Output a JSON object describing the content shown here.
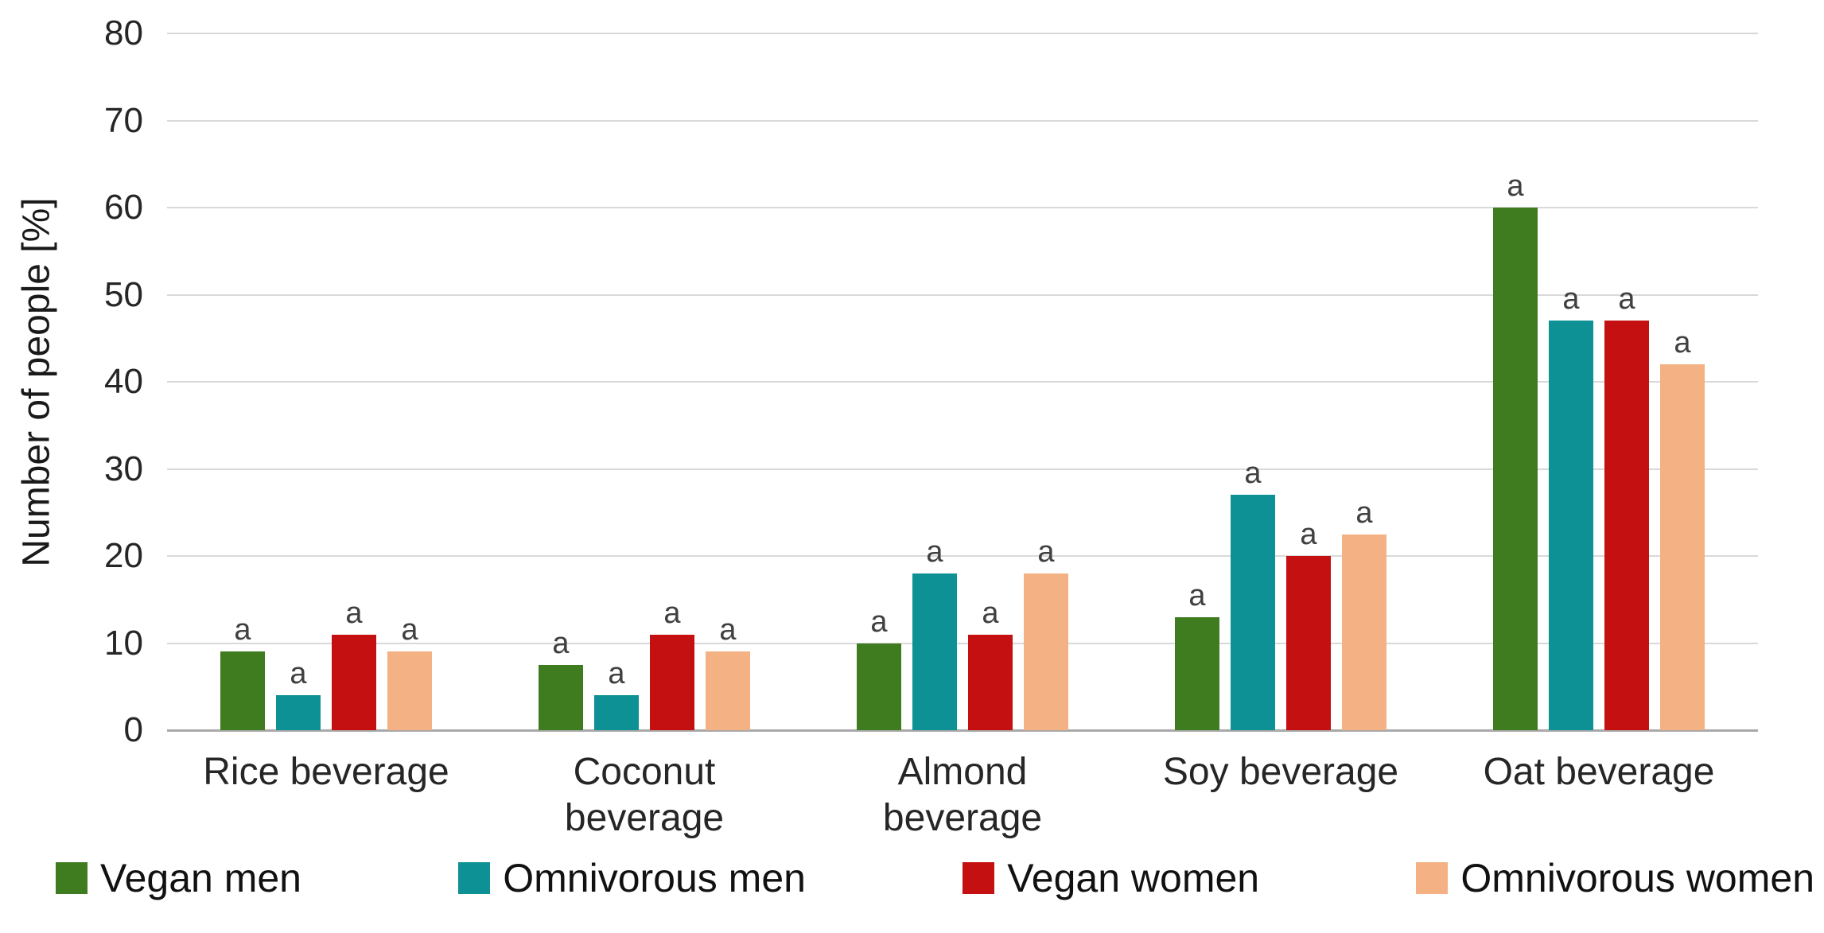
{
  "chart_data": {
    "type": "bar",
    "title": "",
    "ylabel": "Number of people [%]",
    "xlabel": "",
    "ylim": [
      0,
      80
    ],
    "ytick_step": 10,
    "grid": true,
    "legend_position": "bottom",
    "bar_annotation": "a",
    "categories": [
      "Rice beverage",
      "Coconut\nbeverage",
      "Almond\nbeverage",
      "Soy beverage",
      "Oat beverage"
    ],
    "series": [
      {
        "name": "Vegan men",
        "color": "#3E7C1F",
        "values": [
          9,
          7.5,
          10,
          13,
          60
        ]
      },
      {
        "name": "Omnivorous men",
        "color": "#0E9195",
        "values": [
          4,
          4,
          18,
          27,
          47
        ]
      },
      {
        "name": "Vegan women",
        "color": "#C51011",
        "values": [
          11,
          11,
          11,
          20,
          47
        ]
      },
      {
        "name": "Omnivorous women",
        "color": "#F4B183",
        "values": [
          9,
          9,
          18,
          22.5,
          42
        ]
      }
    ],
    "annotations": {
      "per_bar": [
        [
          "a",
          "a",
          "a",
          "a",
          "a"
        ],
        [
          "a",
          "a",
          "a",
          "a",
          "a"
        ],
        [
          "a",
          "a",
          "a",
          "a",
          "a"
        ],
        [
          "a",
          "a",
          "a",
          "a",
          "a"
        ]
      ]
    },
    "style": {
      "gridline_color": "#D9D9D9",
      "axis_line_color": "#A9A9A9",
      "tick_label_color": "#262626",
      "annotation_color": "#404040"
    }
  }
}
